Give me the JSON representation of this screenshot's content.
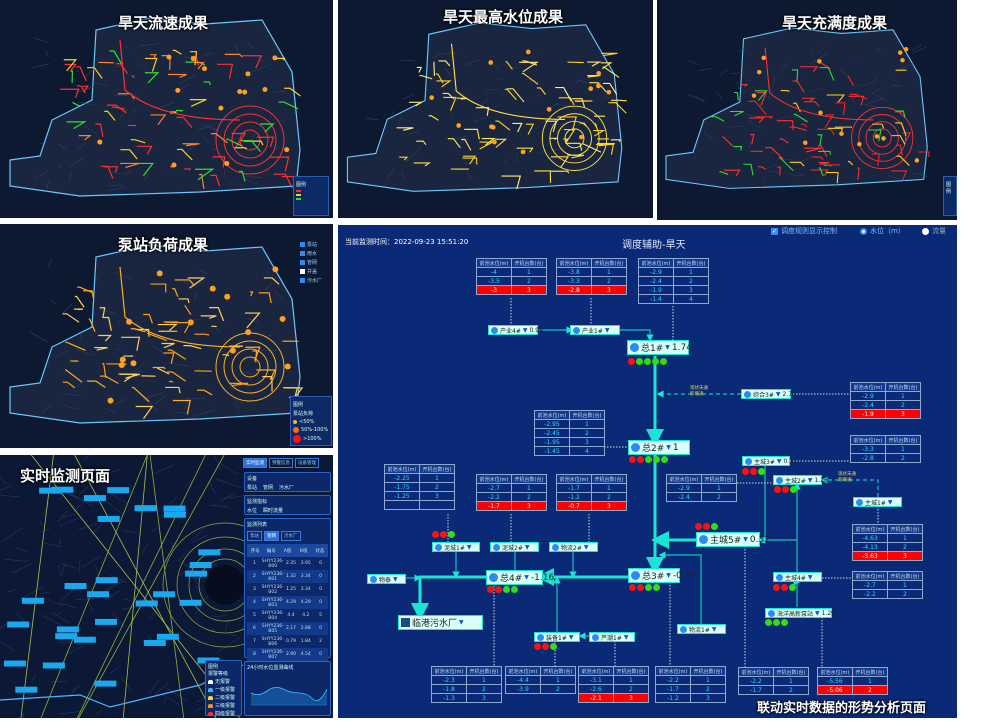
{
  "panels": {
    "velocity": {
      "title": "旱天流速成果",
      "legend_title": "图例"
    },
    "water_level": {
      "title": "旱天最高水位成果"
    },
    "fullness": {
      "title": "旱天充满度成果",
      "legend_title": "图例"
    },
    "pump_load": {
      "title": "泵站负荷成果",
      "layers": [
        "泵站",
        "雨水",
        "管网",
        "井盖",
        "污水厂"
      ],
      "legend_title": "图例",
      "legend_subtitle": "泵站负荷",
      "legend_items": [
        {
          "label": "<50%",
          "color": "#ffb020"
        },
        {
          "label": "50%-100%",
          "color": "#ff6a10"
        },
        {
          "label": ">100%",
          "color": "#ff1010"
        }
      ]
    },
    "monitoring": {
      "title": "实时监测页面",
      "tabs": [
        "实时监测",
        "预警信息",
        "设备管理"
      ],
      "device_title": "设备",
      "device_options": [
        "泵站",
        "管网",
        "污水厂"
      ],
      "metric_title": "监测指标",
      "metric_options": [
        "水位",
        "瞬时流量"
      ],
      "list_title": "监测列表",
      "list_tabs": [
        "泵站",
        "管网",
        "污水厂"
      ],
      "list_headers": [
        "序号",
        "编号",
        "A值",
        "B值",
        "状态"
      ],
      "list_rows": [
        [
          "1",
          "SHYY236-B00",
          "2.35",
          "3.95",
          "0"
        ],
        [
          "2",
          "SHYY236-B01",
          "1.32",
          "3.34",
          "0"
        ],
        [
          "3",
          "SHYY236-B02",
          "1.25",
          "3.34",
          "0"
        ],
        [
          "4",
          "SHYY236-B03",
          "4.29",
          "4.29",
          "0"
        ],
        [
          "5",
          "SHYY236-B04",
          "4.4",
          "4.2",
          "5"
        ],
        [
          "6",
          "SHYY236-B05",
          "2.17",
          "2.88",
          "0"
        ],
        [
          "7",
          "SHYY236-B06",
          "0.79",
          "1.84",
          "2"
        ],
        [
          "8",
          "SHYY236-B07",
          "2.90",
          "4.54",
          "0"
        ]
      ],
      "legend_title": "图例",
      "legend_subtitle": "报警等级",
      "legend_items": [
        {
          "label": "无报警",
          "color": "#ffffff"
        },
        {
          "label": "一级报警",
          "color": "#3ab8ff"
        },
        {
          "label": "二级报警",
          "color": "#ffd21a"
        },
        {
          "label": "三级报警",
          "color": "#ff8c1a"
        },
        {
          "label": "四级报警",
          "color": "#ff2a2a"
        }
      ],
      "chart_title": "24小时水位监测曲线"
    }
  },
  "diagram": {
    "monitor_time_label": "当前监测时间：2022-09-23 15:51:20",
    "title": "调度辅助-旱天",
    "controls": {
      "rule_display": "调度规则显示控制",
      "water_level": "水位（m）",
      "flow": "流量"
    },
    "table_headers": [
      "前池水位(m)",
      "开机台数(台)"
    ],
    "status_note": [
      "现状未通",
      "新增通"
    ],
    "nodes": [
      {
        "name": "产业4#",
        "value": "0.99",
        "dots": []
      },
      {
        "name": "产业1#",
        "value": "",
        "dots": []
      },
      {
        "name": "总1#",
        "value": "1.74",
        "dots": [
          "r",
          "g",
          "g",
          "g",
          "g"
        ]
      },
      {
        "name": "综合3#",
        "value": "2.74",
        "dots": []
      },
      {
        "name": "总2#",
        "value": "1",
        "dots": [
          "r",
          "r",
          "g",
          "g",
          "g"
        ]
      },
      {
        "name": "主城3#",
        "value": "0.15",
        "dots": [
          "r",
          "r",
          "g"
        ]
      },
      {
        "name": "主城2#",
        "value": "1.26",
        "dots": [
          "r",
          "r",
          "g"
        ]
      },
      {
        "name": "主城1#",
        "value": "",
        "dots": []
      },
      {
        "name": "主城5#",
        "value": "0.32",
        "dots": [
          "r",
          "r",
          "g"
        ]
      },
      {
        "name": "主城4#",
        "value": "",
        "dots": [
          "r",
          "r",
          "g"
        ]
      },
      {
        "name": "海洋高新泵站",
        "value": "1.29",
        "dots": [
          "g",
          "g",
          "g"
        ]
      },
      {
        "name": "物流1#",
        "value": "",
        "dots": []
      },
      {
        "name": "总3#",
        "value": "-0.76",
        "dots": [
          "r",
          "r",
          "g",
          "g"
        ]
      },
      {
        "name": "总4#",
        "value": "-1.16",
        "dots": [
          "r",
          "r",
          "g",
          "g"
        ]
      },
      {
        "name": "物泰",
        "value": "",
        "dots": []
      },
      {
        "name": "装备1#",
        "value": "",
        "dots": [
          "r",
          "r",
          "g"
        ]
      },
      {
        "name": "芦潮1#",
        "value": "",
        "dots": []
      },
      {
        "name": "泥城1#",
        "value": "",
        "dots": [
          "r",
          "r",
          "g"
        ]
      },
      {
        "name": "泥城2#",
        "value": "",
        "dots": []
      },
      {
        "name": "物流2#",
        "value": "",
        "dots": []
      },
      {
        "name": "临港污水厂",
        "value": "",
        "dots": []
      }
    ],
    "tables": [
      {
        "rows": [
          [
            "-4",
            "1"
          ],
          [
            "-3.5",
            "2"
          ],
          [
            "-3",
            "3"
          ]
        ],
        "highlight": 2
      },
      {
        "rows": [
          [
            "-3.8",
            "1"
          ],
          [
            "-3.3",
            "2"
          ],
          [
            "-2.8",
            "3"
          ]
        ],
        "highlight": 2
      },
      {
        "rows": [
          [
            "-2.9",
            "1"
          ],
          [
            "-2.4",
            "2"
          ],
          [
            "-1.9",
            "3"
          ],
          [
            "-1.4",
            "4"
          ]
        ],
        "highlight": -1
      },
      {
        "rows": [
          [
            "-2.9",
            "1"
          ],
          [
            "-2.4",
            "2"
          ],
          [
            "-1.9",
            "3"
          ]
        ],
        "highlight": 2
      },
      {
        "rows": [
          [
            "-2.95",
            "1"
          ],
          [
            "-2.45",
            "2"
          ],
          [
            "-1.95",
            "3"
          ],
          [
            "-1.45",
            "4"
          ]
        ],
        "highlight": -1
      },
      {
        "rows": [
          [
            "-2.25",
            "1"
          ],
          [
            "-1.75",
            "2"
          ],
          [
            "-1.25",
            "3"
          ],
          [
            "",
            ""
          ]
        ],
        "highlight": -1
      },
      {
        "rows": [
          [
            "-2.7",
            "1"
          ],
          [
            "-2.2",
            "2"
          ],
          [
            "-1.7",
            "3"
          ]
        ],
        "highlight": 2
      },
      {
        "rows": [
          [
            "-1.7",
            "1"
          ],
          [
            "-1.2",
            "2"
          ],
          [
            "-0.7",
            "3"
          ]
        ],
        "highlight": 2
      },
      {
        "rows": [
          [
            "-3.3",
            "1"
          ],
          [
            "-2.8",
            "2"
          ]
        ],
        "highlight": -1
      },
      {
        "rows": [
          [
            "-2.9",
            "1"
          ],
          [
            "-2.4",
            "2"
          ]
        ],
        "highlight": -1
      },
      {
        "rows": [
          [
            "-4.63",
            "1"
          ],
          [
            "-4.13",
            "2"
          ],
          [
            "-3.63",
            "3"
          ]
        ],
        "highlight": 2
      },
      {
        "rows": [
          [
            "-2.7",
            "1"
          ],
          [
            "-2.2",
            "2"
          ]
        ],
        "highlight": -1
      },
      {
        "rows": [
          [
            "-2.3",
            "1"
          ],
          [
            "-1.8",
            "2"
          ],
          [
            "-1.3",
            "3"
          ]
        ],
        "highlight": -1
      },
      {
        "rows": [
          [
            "-4.4",
            "1"
          ],
          [
            "-3.9",
            "2"
          ]
        ],
        "highlight": -1
      },
      {
        "rows": [
          [
            "-3.1",
            "1"
          ],
          [
            "-2.6",
            "2"
          ],
          [
            "-2.1",
            "3"
          ]
        ],
        "highlight": 2
      },
      {
        "rows": [
          [
            "-2.2",
            "1"
          ],
          [
            "-1.7",
            "2"
          ],
          [
            "-1.2",
            "3"
          ]
        ],
        "highlight": -1
      },
      {
        "rows": [
          [
            "-2.2",
            "1"
          ],
          [
            "-1.7",
            "2"
          ]
        ],
        "highlight": -1
      },
      {
        "rows": [
          [
            "-5.56",
            "1"
          ],
          [
            "-5.06",
            "2"
          ]
        ],
        "highlight": 1
      }
    ],
    "caption": "联动实时数据的形势分析页面"
  },
  "colors": {
    "trunk": "#19e6d2",
    "alarm": "#ff0000",
    "ok": "#33dd11",
    "diagram_bg": "#0a2a78"
  }
}
